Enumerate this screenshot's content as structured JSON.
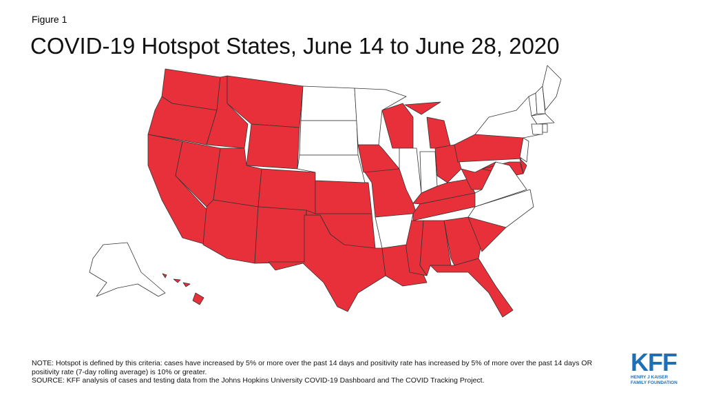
{
  "header": {
    "figure": "Figure 1",
    "title": "COVID-19 Hotspot States, June 14 to June 28, 2020"
  },
  "notes": {
    "note": "NOTE: Hotspot is defined by this criteria: cases have increased by 5% or more over the past 14 days and positivity rate has increased by 5% of more over the past 14 days OR positivity rate (7-day rolling average) is 10% or greater.",
    "source": "SOURCE:  KFF analysis of cases and testing data from the Johns Hopkins University COVID-19 Dashboard and The COVID Tracking Project."
  },
  "logo": {
    "name": "KFF",
    "line1": "HENRY J KAISER",
    "line2": "FAMILY FOUNDATION"
  }
}
